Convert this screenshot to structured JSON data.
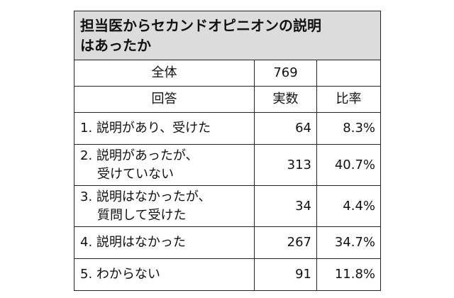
{
  "table": {
    "title_line1": "担当医からセカンドオピニオンの説明",
    "title_line2": "はあったか",
    "total_label": "全体",
    "total_value": "769",
    "header_answer": "回答",
    "header_count": "実数",
    "header_ratio": "比率",
    "rows": [
      {
        "label_line1": "1. 説明があり、受けた",
        "label_line2": "",
        "count": "64",
        "ratio": "8.3%"
      },
      {
        "label_line1": "2. 説明があったが、",
        "label_line2": "受けていない",
        "count": "313",
        "ratio": "40.7%"
      },
      {
        "label_line1": "3. 説明はなかったが、",
        "label_line2": "質問して受けた",
        "count": "34",
        "ratio": "4.4%"
      },
      {
        "label_line1": "4. 説明はなかった",
        "label_line2": "",
        "count": "267",
        "ratio": "34.7%"
      },
      {
        "label_line1": "5. わからない",
        "label_line2": "",
        "count": "91",
        "ratio": "11.8%"
      }
    ]
  }
}
